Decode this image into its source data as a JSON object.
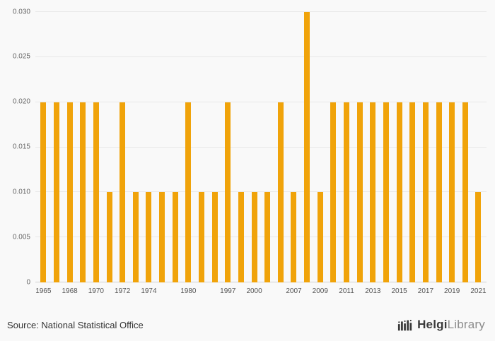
{
  "chart_data": {
    "type": "bar",
    "title": "",
    "xlabel": "",
    "ylabel": "",
    "ylim": [
      0,
      0.03
    ],
    "grid": true,
    "legend": "none",
    "bar_color": "#F0A30A",
    "yticks": [
      {
        "value": 0,
        "label": "0"
      },
      {
        "value": 0.005,
        "label": "0.005"
      },
      {
        "value": 0.01,
        "label": "0.010"
      },
      {
        "value": 0.015,
        "label": "0.015"
      },
      {
        "value": 0.02,
        "label": "0.020"
      },
      {
        "value": 0.025,
        "label": "0.025"
      },
      {
        "value": 0.03,
        "label": "0.030"
      }
    ],
    "bars": [
      {
        "year": "1965",
        "value": 0.02,
        "label": "1965"
      },
      {
        "year": "1966",
        "value": 0.02,
        "label": ""
      },
      {
        "year": "1968",
        "value": 0.02,
        "label": "1968"
      },
      {
        "year": "1969",
        "value": 0.02,
        "label": ""
      },
      {
        "year": "1970",
        "value": 0.02,
        "label": "1970"
      },
      {
        "year": "1971",
        "value": 0.01,
        "label": ""
      },
      {
        "year": "1972",
        "value": 0.02,
        "label": "1972"
      },
      {
        "year": "1973",
        "value": 0.01,
        "label": ""
      },
      {
        "year": "1974",
        "value": 0.01,
        "label": "1974"
      },
      {
        "year": "1975",
        "value": 0.01,
        "label": ""
      },
      {
        "year": "1979",
        "value": 0.01,
        "label": ""
      },
      {
        "year": "1980",
        "value": 0.02,
        "label": "1980"
      },
      {
        "year": "1981",
        "value": 0.01,
        "label": ""
      },
      {
        "year": "1996",
        "value": 0.01,
        "label": ""
      },
      {
        "year": "1997",
        "value": 0.02,
        "label": "1997"
      },
      {
        "year": "1998",
        "value": 0.01,
        "label": ""
      },
      {
        "year": "2000",
        "value": 0.01,
        "label": "2000"
      },
      {
        "year": "2001",
        "value": 0.01,
        "label": ""
      },
      {
        "year": "2006",
        "value": 0.02,
        "label": ""
      },
      {
        "year": "2007",
        "value": 0.01,
        "label": "2007"
      },
      {
        "year": "2008",
        "value": 0.03,
        "label": ""
      },
      {
        "year": "2009",
        "value": 0.01,
        "label": "2009"
      },
      {
        "year": "2010",
        "value": 0.02,
        "label": ""
      },
      {
        "year": "2011",
        "value": 0.02,
        "label": "2011"
      },
      {
        "year": "2012",
        "value": 0.02,
        "label": ""
      },
      {
        "year": "2013",
        "value": 0.02,
        "label": "2013"
      },
      {
        "year": "2014",
        "value": 0.02,
        "label": ""
      },
      {
        "year": "2015",
        "value": 0.02,
        "label": "2015"
      },
      {
        "year": "2016",
        "value": 0.02,
        "label": ""
      },
      {
        "year": "2017",
        "value": 0.02,
        "label": "2017"
      },
      {
        "year": "2018",
        "value": 0.02,
        "label": ""
      },
      {
        "year": "2019",
        "value": 0.02,
        "label": "2019"
      },
      {
        "year": "2020",
        "value": 0.02,
        "label": ""
      },
      {
        "year": "2021",
        "value": 0.01,
        "label": "2021"
      }
    ]
  },
  "footer": {
    "source": "Source: National Statistical Office",
    "logo": {
      "icon": "helgi-bars-logo-icon",
      "brand_primary": "Helgi",
      "brand_secondary": "Library"
    }
  },
  "colors": {
    "background": "#f9f9f9",
    "bar": "#F0A30A",
    "gridline": "#e8e8e8",
    "axis_text": "#666666",
    "source_text": "#333333",
    "logo_dark": "#3a3a3a",
    "logo_light": "#8c8c8c"
  }
}
